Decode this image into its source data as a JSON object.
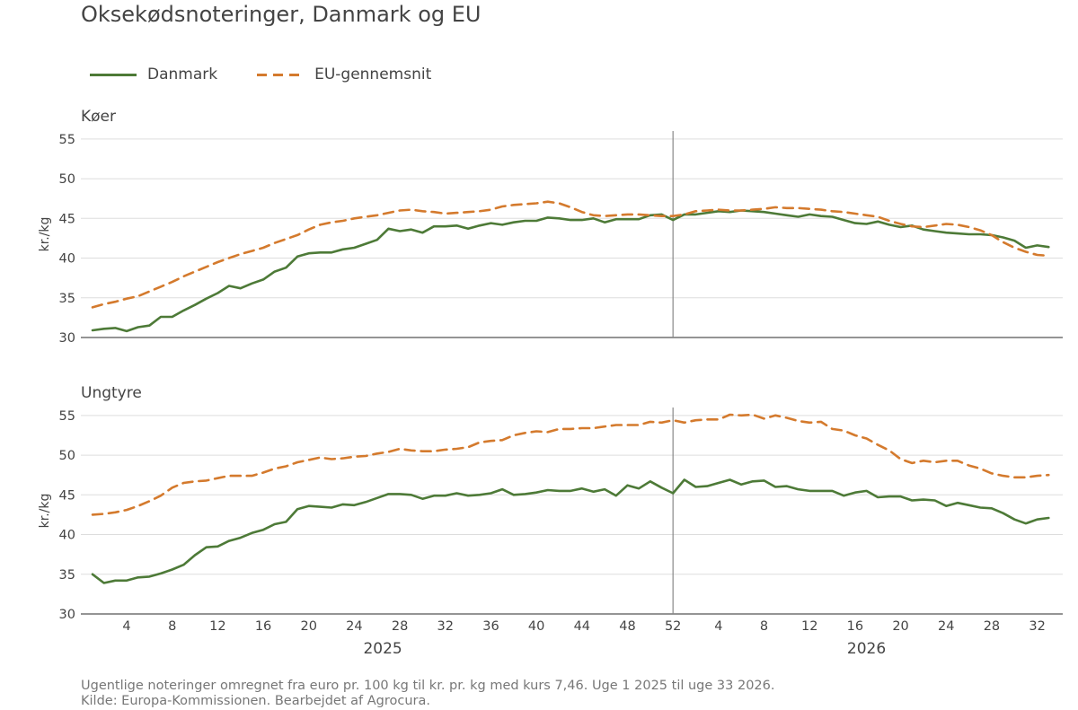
{
  "chart_data": {
    "type": "line",
    "title": "Oksekødsnoteringer, Danmark og EU",
    "legend": {
      "placement": "top-left",
      "entries": [
        {
          "name": "Danmark",
          "style": "solid",
          "color": "#4d7a37"
        },
        {
          "name": "EU-gennemsnit",
          "style": "dashed",
          "color": "#d47a2d"
        }
      ]
    },
    "x_axis": {
      "weeks_2025": 52,
      "weeks_2026": 33,
      "tick_labels": [
        "4",
        "8",
        "12",
        "16",
        "20",
        "24",
        "28",
        "32",
        "36",
        "40",
        "44",
        "48",
        "52",
        "4",
        "8",
        "12",
        "16",
        "20",
        "24",
        "28",
        "32"
      ],
      "year_labels": [
        "2025",
        "2026"
      ],
      "year_divider_after_week": 52
    },
    "panels": [
      {
        "title": "Køer",
        "ylabel": "kr./kg",
        "ylim": [
          30,
          56
        ],
        "yticks": [
          "30",
          "35",
          "40",
          "45",
          "50",
          "55"
        ],
        "series": [
          {
            "name": "Danmark",
            "values": [
              30.9,
              31.1,
              31.2,
              30.8,
              31.3,
              31.5,
              32.6,
              32.6,
              33.4,
              34.1,
              34.9,
              35.6,
              36.5,
              36.2,
              36.8,
              37.3,
              38.3,
              38.8,
              40.2,
              40.6,
              40.7,
              40.7,
              41.1,
              41.3,
              41.8,
              42.3,
              43.7,
              43.4,
              43.6,
              43.2,
              44.0,
              44.0,
              44.1,
              43.7,
              44.1,
              44.4,
              44.2,
              44.5,
              44.7,
              44.7,
              45.1,
              45.0,
              44.8,
              44.8,
              45.0,
              44.5,
              44.9,
              44.9,
              44.9,
              45.4,
              45.5,
              44.8,
              45.5,
              45.5,
              45.7,
              45.9,
              45.8,
              46.0,
              45.9,
              45.8,
              45.6,
              45.4,
              45.2,
              45.5,
              45.3,
              45.2,
              44.8,
              44.4,
              44.3,
              44.6,
              44.2,
              43.9,
              44.1,
              43.6,
              43.4,
              43.2,
              43.1,
              43.0,
              43.0,
              42.9,
              42.6,
              42.2,
              41.3,
              41.6,
              41.4
            ]
          },
          {
            "name": "EU-gennemsnit",
            "values": [
              33.8,
              34.2,
              34.5,
              34.9,
              35.2,
              35.8,
              36.4,
              37.0,
              37.7,
              38.3,
              38.9,
              39.5,
              40.0,
              40.5,
              40.9,
              41.3,
              41.9,
              42.4,
              42.9,
              43.6,
              44.2,
              44.5,
              44.7,
              45.0,
              45.2,
              45.4,
              45.7,
              46.0,
              46.1,
              45.9,
              45.8,
              45.6,
              45.7,
              45.8,
              45.9,
              46.1,
              46.5,
              46.7,
              46.8,
              46.9,
              47.1,
              46.9,
              46.4,
              45.8,
              45.4,
              45.3,
              45.4,
              45.5,
              45.5,
              45.4,
              45.3,
              45.3,
              45.5,
              45.9,
              46.0,
              46.1,
              46.0,
              46.0,
              46.1,
              46.2,
              46.4,
              46.3,
              46.3,
              46.2,
              46.1,
              45.9,
              45.8,
              45.6,
              45.4,
              45.2,
              44.7,
              44.3,
              44.0,
              43.9,
              44.1,
              44.3,
              44.2,
              43.9,
              43.5,
              42.9,
              42.0,
              41.3,
              40.8,
              40.4,
              40.3
            ]
          }
        ]
      },
      {
        "title": "Ungtyre",
        "ylabel": "kr./kg",
        "ylim": [
          30,
          56
        ],
        "yticks": [
          "30",
          "35",
          "40",
          "45",
          "50",
          "55"
        ],
        "series": [
          {
            "name": "Danmark",
            "values": [
              35.0,
              33.9,
              34.2,
              34.2,
              34.6,
              34.7,
              35.1,
              35.6,
              36.2,
              37.4,
              38.4,
              38.5,
              39.2,
              39.6,
              40.2,
              40.6,
              41.3,
              41.6,
              43.2,
              43.6,
              43.5,
              43.4,
              43.8,
              43.7,
              44.1,
              44.6,
              45.1,
              45.1,
              45.0,
              44.5,
              44.9,
              44.9,
              45.2,
              44.9,
              45.0,
              45.2,
              45.7,
              45.0,
              45.1,
              45.3,
              45.6,
              45.5,
              45.5,
              45.8,
              45.4,
              45.7,
              44.9,
              46.2,
              45.8,
              46.7,
              45.9,
              45.2,
              46.9,
              46.0,
              46.1,
              46.5,
              46.9,
              46.3,
              46.7,
              46.8,
              46.0,
              46.1,
              45.7,
              45.5,
              45.5,
              45.5,
              44.9,
              45.3,
              45.5,
              44.7,
              44.8,
              44.8,
              44.3,
              44.4,
              44.3,
              43.6,
              44.0,
              43.7,
              43.4,
              43.3,
              42.7,
              41.9,
              41.4,
              41.9,
              42.1
            ]
          },
          {
            "name": "EU-gennemsnit",
            "values": [
              42.5,
              42.6,
              42.8,
              43.1,
              43.6,
              44.2,
              44.9,
              45.9,
              46.5,
              46.7,
              46.8,
              47.1,
              47.4,
              47.4,
              47.4,
              47.8,
              48.3,
              48.6,
              49.1,
              49.4,
              49.7,
              49.5,
              49.6,
              49.8,
              49.9,
              50.2,
              50.4,
              50.8,
              50.6,
              50.5,
              50.5,
              50.7,
              50.8,
              51.0,
              51.6,
              51.8,
              51.9,
              52.5,
              52.8,
              53.0,
              52.9,
              53.3,
              53.3,
              53.4,
              53.4,
              53.6,
              53.8,
              53.8,
              53.8,
              54.2,
              54.1,
              54.4,
              54.1,
              54.4,
              54.5,
              54.5,
              55.1,
              55.0,
              55.1,
              54.6,
              55.0,
              54.7,
              54.3,
              54.1,
              54.2,
              53.3,
              53.1,
              52.5,
              52.1,
              51.3,
              50.6,
              49.5,
              49.0,
              49.3,
              49.1,
              49.3,
              49.3,
              48.7,
              48.3,
              47.7,
              47.4,
              47.2,
              47.2,
              47.4,
              47.5
            ]
          }
        ]
      }
    ],
    "grid": true,
    "notes": [
      "Ugentlige noteringer omregnet fra euro pr. 100 kg til kr. pr. kg med kurs 7,46. Uge 1 2025 til uge 33 2026.",
      "Kilde: Europa-Kommissionen. Bearbejdet af Agrocura."
    ]
  }
}
